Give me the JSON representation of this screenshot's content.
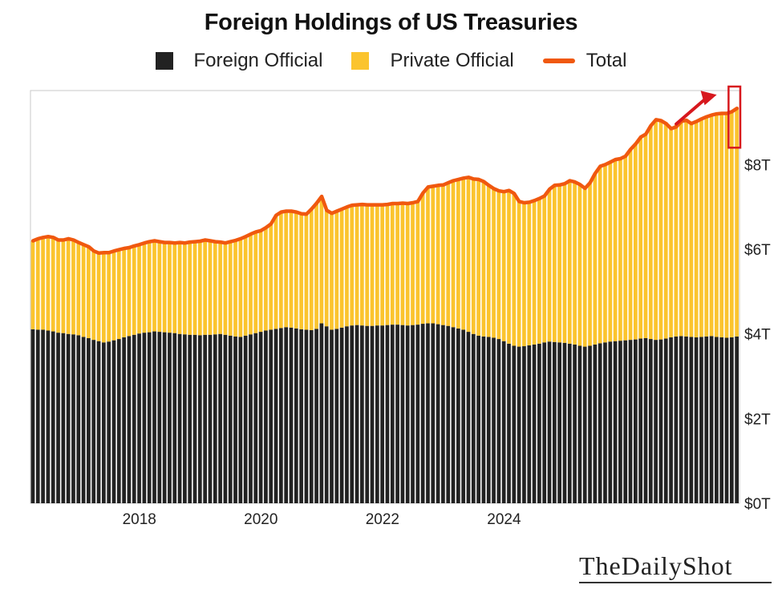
{
  "chart_data": {
    "type": "bar",
    "stacked": true,
    "title": "Foreign Holdings of US Treasuries",
    "legend": {
      "position": "top",
      "entries": [
        {
          "label": "Foreign Official",
          "color": "#222222",
          "kind": "bar"
        },
        {
          "label": "Private Official",
          "color": "#fbc42e",
          "kind": "bar"
        },
        {
          "label": "Total",
          "color": "#f0580f",
          "kind": "line"
        }
      ]
    },
    "x_ticks": [
      "2018",
      "2020",
      "2022",
      "2024"
    ],
    "x_tick_values": [
      2018,
      2020,
      2022,
      2024
    ],
    "x_start": 2016.25,
    "month_step": 0.08333,
    "y_ticks": [
      "$0T",
      "$2T",
      "$4T",
      "$6T",
      "$8T"
    ],
    "y_tick_values": [
      0,
      2,
      4,
      6,
      8
    ],
    "ylim": [
      0,
      9.75
    ],
    "ylabel": "",
    "xlabel": "",
    "units": "trillions USD",
    "series": [
      {
        "name": "Foreign Official",
        "color": "#222222",
        "values": [
          4.11,
          4.1,
          4.1,
          4.08,
          4.06,
          4.03,
          4.02,
          4.0,
          3.99,
          3.97,
          3.93,
          3.9,
          3.86,
          3.83,
          3.8,
          3.82,
          3.85,
          3.88,
          3.92,
          3.95,
          3.98,
          4.01,
          4.03,
          4.04,
          4.06,
          4.05,
          4.04,
          4.03,
          4.02,
          4.0,
          3.99,
          3.98,
          3.98,
          3.97,
          3.98,
          3.98,
          3.99,
          4.0,
          3.98,
          3.96,
          3.94,
          3.93,
          3.96,
          3.99,
          4.02,
          4.05,
          4.08,
          4.1,
          4.12,
          4.14,
          4.16,
          4.15,
          4.13,
          4.11,
          4.1,
          4.09,
          4.12,
          4.25,
          4.18,
          4.1,
          4.12,
          4.15,
          4.18,
          4.2,
          4.21,
          4.2,
          4.19,
          4.19,
          4.2,
          4.2,
          4.21,
          4.22,
          4.22,
          4.21,
          4.2,
          4.21,
          4.22,
          4.24,
          4.25,
          4.25,
          4.23,
          4.21,
          4.19,
          4.16,
          4.13,
          4.1,
          4.05,
          4.0,
          3.96,
          3.94,
          3.93,
          3.91,
          3.88,
          3.83,
          3.77,
          3.72,
          3.7,
          3.71,
          3.73,
          3.75,
          3.77,
          3.8,
          3.82,
          3.81,
          3.8,
          3.79,
          3.77,
          3.75,
          3.72,
          3.7,
          3.72,
          3.75,
          3.78,
          3.8,
          3.82,
          3.83,
          3.84,
          3.85,
          3.86,
          3.87,
          3.89,
          3.9,
          3.88,
          3.86,
          3.87,
          3.89,
          3.92,
          3.94,
          3.95,
          3.94,
          3.93,
          3.92,
          3.93,
          3.94,
          3.95,
          3.93,
          3.92,
          3.91,
          3.92,
          3.94
        ]
      },
      {
        "name": "Private Official",
        "color": "#fbc42e",
        "values": [
          2.09,
          2.15,
          2.18,
          2.22,
          2.22,
          2.19,
          2.2,
          2.25,
          2.23,
          2.19,
          2.18,
          2.16,
          2.1,
          2.08,
          2.12,
          2.1,
          2.11,
          2.11,
          2.1,
          2.09,
          2.1,
          2.1,
          2.12,
          2.14,
          2.14,
          2.13,
          2.12,
          2.13,
          2.13,
          2.16,
          2.16,
          2.19,
          2.2,
          2.22,
          2.24,
          2.22,
          2.19,
          2.17,
          2.17,
          2.22,
          2.27,
          2.32,
          2.34,
          2.37,
          2.39,
          2.39,
          2.43,
          2.5,
          2.68,
          2.74,
          2.74,
          2.75,
          2.75,
          2.73,
          2.73,
          2.86,
          2.97,
          3.0,
          2.74,
          2.75,
          2.78,
          2.8,
          2.82,
          2.84,
          2.84,
          2.86,
          2.86,
          2.86,
          2.85,
          2.85,
          2.85,
          2.86,
          2.86,
          2.88,
          2.88,
          2.89,
          2.91,
          3.09,
          3.22,
          3.24,
          3.28,
          3.31,
          3.38,
          3.46,
          3.52,
          3.58,
          3.65,
          3.66,
          3.69,
          3.66,
          3.58,
          3.52,
          3.5,
          3.53,
          3.62,
          3.6,
          3.43,
          3.39,
          3.38,
          3.4,
          3.43,
          3.46,
          3.6,
          3.7,
          3.72,
          3.76,
          3.85,
          3.84,
          3.81,
          3.74,
          3.85,
          4.04,
          4.18,
          4.2,
          4.24,
          4.29,
          4.3,
          4.35,
          4.5,
          4.62,
          4.76,
          4.82,
          5.04,
          5.2,
          5.17,
          5.11,
          4.98,
          5.0,
          5.1,
          5.11,
          5.04,
          5.1,
          5.15,
          5.19,
          5.22,
          5.27,
          5.28,
          5.29,
          5.32,
          5.39
        ]
      }
    ],
    "total_line": {
      "name": "Total",
      "color": "#f0580f",
      "values": [
        6.2,
        6.25,
        6.28,
        6.3,
        6.28,
        6.22,
        6.22,
        6.25,
        6.22,
        6.16,
        6.11,
        6.06,
        5.96,
        5.91,
        5.92,
        5.92,
        5.96,
        5.99,
        6.02,
        6.04,
        6.08,
        6.11,
        6.15,
        6.18,
        6.2,
        6.18,
        6.16,
        6.16,
        6.15,
        6.16,
        6.15,
        6.17,
        6.18,
        6.19,
        6.22,
        6.2,
        6.18,
        6.17,
        6.15,
        6.18,
        6.21,
        6.25,
        6.3,
        6.36,
        6.41,
        6.44,
        6.51,
        6.6,
        6.8,
        6.88,
        6.9,
        6.9,
        6.88,
        6.84,
        6.83,
        6.95,
        7.09,
        7.25,
        6.92,
        6.85,
        6.9,
        6.95,
        7.0,
        7.04,
        7.05,
        7.06,
        7.05,
        7.05,
        7.05,
        7.05,
        7.06,
        7.08,
        7.08,
        7.09,
        7.08,
        7.1,
        7.13,
        7.33,
        7.47,
        7.49,
        7.51,
        7.52,
        7.57,
        7.62,
        7.65,
        7.68,
        7.7,
        7.66,
        7.65,
        7.6,
        7.51,
        7.43,
        7.38,
        7.36,
        7.39,
        7.32,
        7.13,
        7.1,
        7.11,
        7.15,
        7.2,
        7.26,
        7.42,
        7.51,
        7.52,
        7.55,
        7.62,
        7.59,
        7.53,
        7.44,
        7.57,
        7.79,
        7.96,
        8.0,
        8.06,
        8.12,
        8.14,
        8.2,
        8.36,
        8.49,
        8.65,
        8.72,
        8.92,
        9.06,
        9.04,
        8.97,
        8.85,
        8.89,
        9.02,
        9.05,
        8.97,
        9.02,
        9.08,
        9.13,
        9.17,
        9.2,
        9.21,
        9.21,
        9.25,
        9.33
      ]
    },
    "annotations": [
      {
        "type": "arrow",
        "color": "#d7181e",
        "from_value": 8.96,
        "to_value": 9.65
      },
      {
        "type": "highlight-box",
        "color": "#d7181e"
      }
    ],
    "grid": false
  },
  "watermark": "TheDailyShot"
}
